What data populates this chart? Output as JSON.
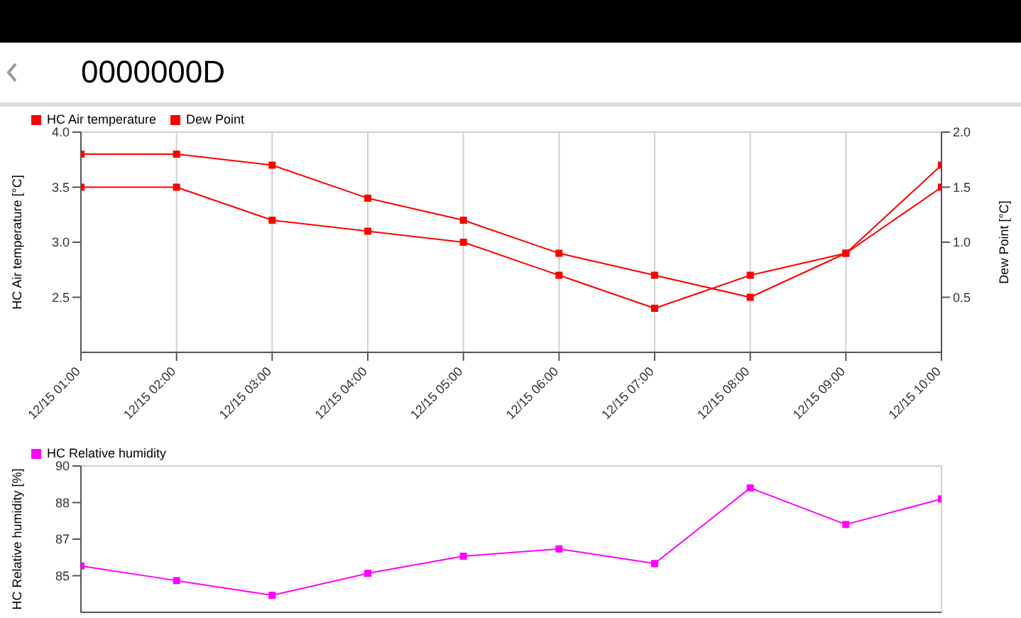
{
  "chart_data": [
    {
      "type": "line",
      "title": "0000000D",
      "categories": [
        "12/15 01:00",
        "12/15 02:00",
        "12/15 03:00",
        "12/15 04:00",
        "12/15 05:00",
        "12/15 06:00",
        "12/15 07:00",
        "12/15 08:00",
        "12/15 09:00",
        "12/15 10:00"
      ],
      "series": [
        {
          "name": "HC Air temperature",
          "color": "#ff0000",
          "values": [
            3.8,
            3.8,
            3.7,
            3.4,
            3.2,
            2.9,
            2.7,
            2.5,
            2.9,
            3.5
          ]
        },
        {
          "name": "Dew Point",
          "color": "#ff0000",
          "axis": "y2",
          "values": [
            1.5,
            1.5,
            1.2,
            1.1,
            1.0,
            0.7,
            0.4,
            0.7,
            0.9,
            1.7
          ]
        }
      ],
      "ylabel": "HC Air temperature [°C]",
      "y2label": "Dew Point [°C]",
      "ylim": [
        2,
        4
      ],
      "yticks": [
        2.5,
        {
          "value": 3,
          "label": "3.0"
        },
        3.5,
        {
          "value": 4,
          "label": "4.0"
        }
      ],
      "y2lim": [
        0,
        2
      ],
      "y2ticks": [
        0.5,
        {
          "value": 1,
          "label": "1.0"
        },
        1.5,
        {
          "value": 2,
          "label": "2.0"
        }
      ],
      "grid": true,
      "legend": "top left",
      "marker": "square"
    },
    {
      "type": "line",
      "categories": [
        null,
        null,
        null,
        null,
        null,
        null,
        null,
        null,
        null,
        null
      ],
      "series": [
        {
          "name": "HC Relative humidity",
          "color": "#ff00ff",
          "values": [
            85.9,
            85.3,
            84.7,
            85.6,
            86.3,
            86.6,
            86.0,
            89.1,
            87.6,
            88.65
          ]
        }
      ],
      "ylabel": "HC Relative humidity [%]",
      "ylim": [
        84,
        90
      ],
      "yticks": [
        90,
        {
          "value": 88.5,
          "label": "88"
        },
        87,
        {
          "value": 85.5,
          "label": "85"
        }
      ],
      "grid": true,
      "legend": "top left",
      "marker": "square",
      "tick_labels": "y"
    }
  ]
}
